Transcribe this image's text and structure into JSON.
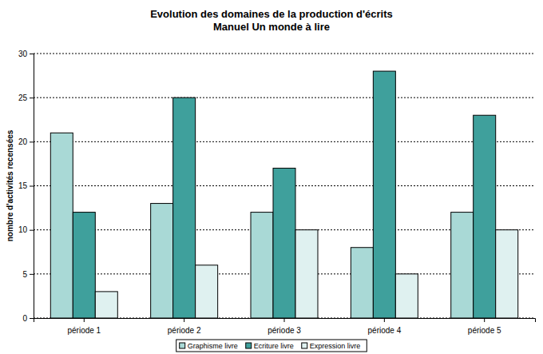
{
  "chart_data": {
    "type": "bar",
    "title": "Evolution des domaines de la production d'écrits",
    "subtitle": "Manuel Un monde à lire",
    "y_label": "nombre d'activités recensées",
    "categories": [
      "période 1",
      "période 2",
      "période 3",
      "période 4",
      "période 5"
    ],
    "series": [
      {
        "name": "Graphisme livre",
        "color": "#a9d9d6",
        "values": [
          21,
          13,
          12,
          8,
          12
        ]
      },
      {
        "name": "Ecriture livre",
        "color": "#3fa09c",
        "values": [
          12,
          25,
          17,
          28,
          23
        ]
      },
      {
        "name": "Expression livre",
        "color": "#dff1f0",
        "values": [
          3,
          6,
          10,
          5,
          10
        ]
      }
    ],
    "ylim": [
      0,
      30
    ],
    "yticks": [
      0,
      5,
      10,
      15,
      20,
      25,
      30
    ],
    "grid": true,
    "legend": "bottom"
  }
}
